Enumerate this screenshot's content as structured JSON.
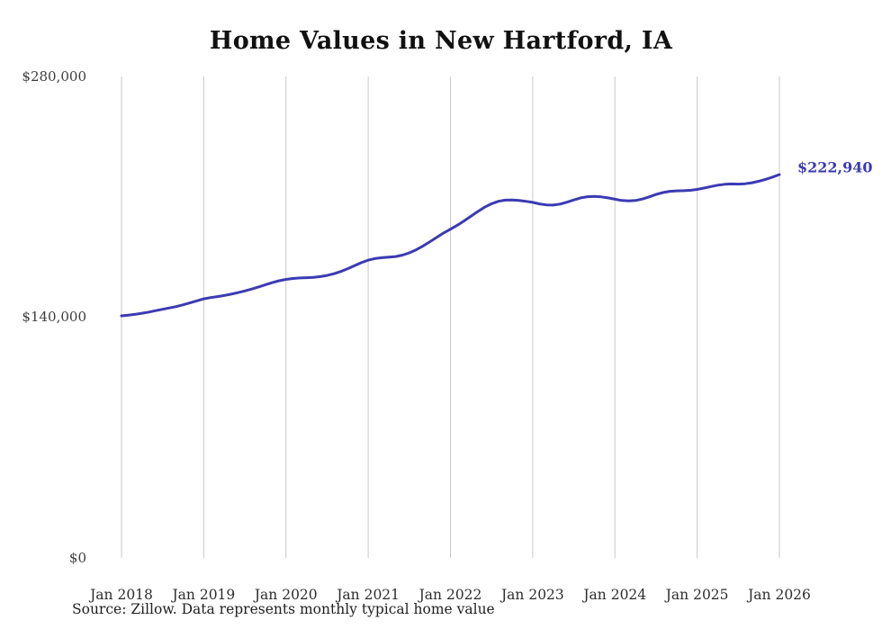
{
  "page": {
    "title": "Home Values in New Hartford, IA",
    "source_note": "Source: Zillow. Data represents monthly typical home value"
  },
  "chart_data": {
    "type": "line",
    "title": "Home Values in New Hartford, IA",
    "x_tick_labels": [
      "Jan 2018",
      "Jan 2019",
      "Jan 2020",
      "Jan 2021",
      "Jan 2022",
      "Jan 2023",
      "Jan 2024",
      "Jan 2025",
      "Jan 2026"
    ],
    "y_tick_labels": [
      "$0",
      "$140,000",
      "$280,000"
    ],
    "ylim": [
      0,
      280000
    ],
    "grid": "vertical-only",
    "legend": "none",
    "line_color": "#3b3bb3",
    "grid_color": "#c9c9c9",
    "end_label": "$222,940",
    "end_value": 222940,
    "series": [
      {
        "name": "Typical home value",
        "start": "Jan 2018",
        "interval": "monthly",
        "values": [
          140800,
          141200,
          141700,
          142300,
          143000,
          143800,
          144600,
          145400,
          146200,
          147200,
          148300,
          149500,
          150700,
          151400,
          152000,
          152600,
          153400,
          154300,
          155300,
          156400,
          157600,
          158900,
          160100,
          161200,
          162000,
          162500,
          162800,
          163000,
          163200,
          163600,
          164300,
          165300,
          166600,
          168200,
          170000,
          171700,
          173200,
          174100,
          174600,
          174900,
          175300,
          176100,
          177400,
          179200,
          181400,
          183900,
          186500,
          189000,
          191200,
          193500,
          196000,
          198700,
          201500,
          204000,
          206000,
          207400,
          208100,
          208200,
          207900,
          207400,
          206800,
          205900,
          205300,
          205200,
          205800,
          206900,
          208200,
          209400,
          210100,
          210300,
          210000,
          209400,
          208600,
          207900,
          207600,
          207900,
          208700,
          210000,
          211400,
          212500,
          213200,
          213500,
          213600,
          213800,
          214300,
          215100,
          216000,
          216800,
          217300,
          217500,
          217400,
          217600,
          218200,
          219100,
          220200,
          221500,
          222940
        ]
      }
    ]
  }
}
